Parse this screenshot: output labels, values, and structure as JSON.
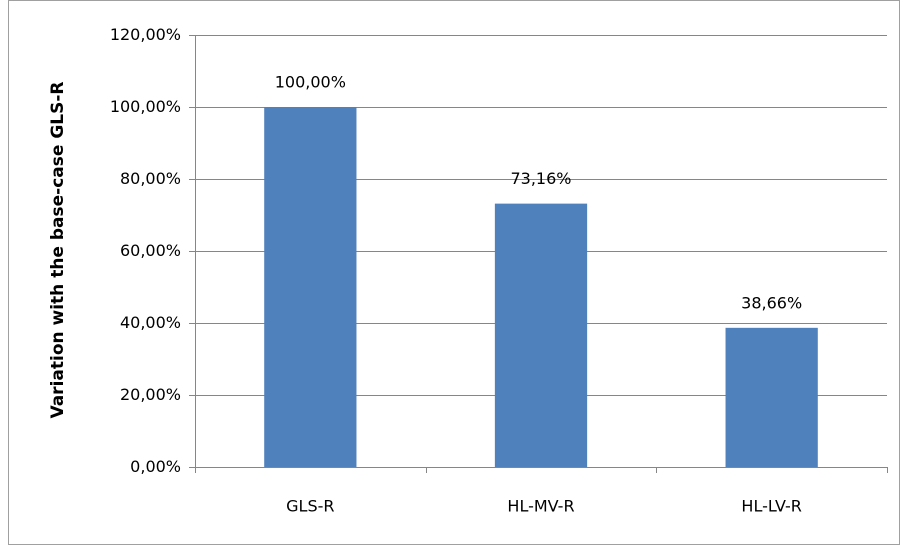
{
  "chart_data": {
    "type": "bar",
    "ylabel": "Variation with the base-case GLS-R",
    "categories": [
      "GLS-R",
      "HL-MV-R",
      "HL-LV-R"
    ],
    "values": [
      100,
      73.16,
      38.66
    ],
    "value_labels": [
      "100,00%",
      "73,16%",
      "38,66%"
    ],
    "color": "#4f81bd",
    "ylim": [
      0,
      120
    ],
    "yticks": [
      {
        "value": 0,
        "label": "0,00%"
      },
      {
        "value": 20,
        "label": "20,00%"
      },
      {
        "value": 40,
        "label": "40,00%"
      },
      {
        "value": 60,
        "label": "60,00%"
      },
      {
        "value": 80,
        "label": "80,00%"
      },
      {
        "value": 100,
        "label": "100,00%"
      },
      {
        "value": 120,
        "label": "120,00%"
      }
    ],
    "grid": true
  }
}
